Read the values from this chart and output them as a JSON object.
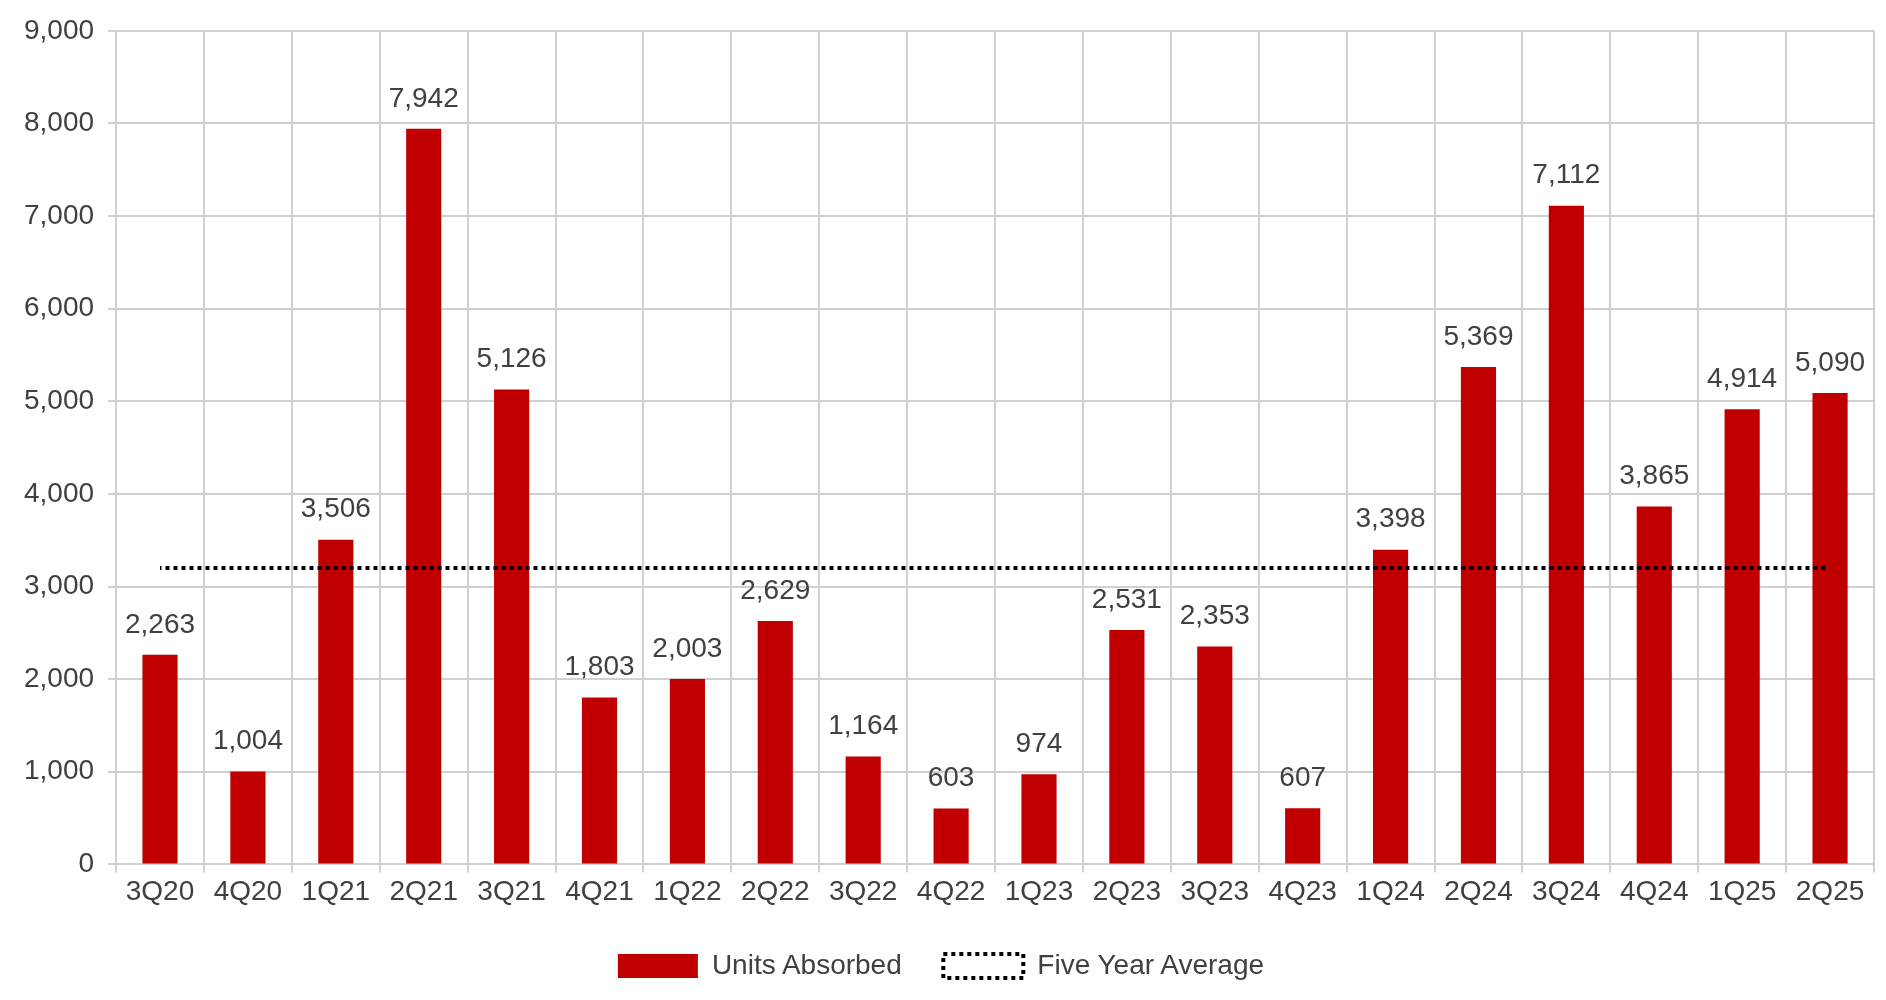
{
  "chart_data": {
    "type": "bar",
    "categories": [
      "3Q20",
      "4Q20",
      "1Q21",
      "2Q21",
      "3Q21",
      "4Q21",
      "1Q22",
      "2Q22",
      "3Q22",
      "4Q22",
      "1Q23",
      "2Q23",
      "3Q23",
      "4Q23",
      "1Q24",
      "2Q24",
      "3Q24",
      "4Q24",
      "1Q25",
      "2Q25"
    ],
    "series": [
      {
        "name": "Units Absorbed",
        "color": "#c00000",
        "values": [
          2263,
          1004,
          3506,
          7942,
          5126,
          1803,
          2003,
          2629,
          1164,
          603,
          974,
          2531,
          2353,
          607,
          3398,
          5369,
          7112,
          3865,
          4914,
          5090
        ],
        "value_labels": [
          "2,263",
          "1,004",
          "3,506",
          "7,942",
          "5,126",
          "1,803",
          "2,003",
          "2,629",
          "1,164",
          "603",
          "974",
          "2,531",
          "2,353",
          "607",
          "3,398",
          "5,369",
          "7,112",
          "3,865",
          "4,914",
          "5,090"
        ]
      },
      {
        "name": "Five Year Average",
        "type": "line",
        "color": "#000000",
        "line_style": "dotted",
        "marker": "none",
        "values": [
          3200,
          3200,
          3200,
          3200,
          3200,
          3200,
          3200,
          3200,
          3200,
          3200,
          3200,
          3200,
          3200,
          3200,
          3200,
          3200,
          3200,
          3200,
          3200,
          3200
        ]
      }
    ],
    "ylim": [
      0,
      9000
    ],
    "yticks": [
      {
        "value": 0,
        "label": "0"
      },
      {
        "value": 1000,
        "label": "1,000"
      },
      {
        "value": 2000,
        "label": "2,000"
      },
      {
        "value": 3000,
        "label": "3,000"
      },
      {
        "value": 4000,
        "label": "4,000"
      },
      {
        "value": 5000,
        "label": "5,000"
      },
      {
        "value": 6000,
        "label": "6,000"
      },
      {
        "value": 7000,
        "label": "7,000"
      },
      {
        "value": 8000,
        "label": "8,000"
      },
      {
        "value": 9000,
        "label": "9,000"
      }
    ],
    "grid": true,
    "legend": "bottom"
  }
}
